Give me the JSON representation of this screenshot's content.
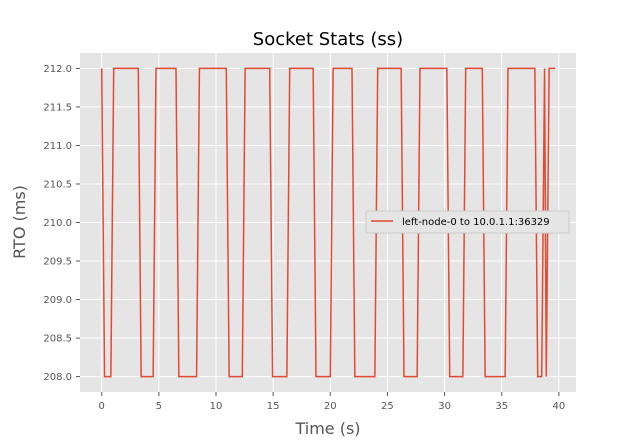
{
  "chart_data": {
    "type": "line",
    "title": "Socket Stats (ss)",
    "xlabel": "Time (s)",
    "ylabel": "RTO (ms)",
    "xlim": [
      -1.9,
      41.5
    ],
    "ylim": [
      207.8,
      212.2
    ],
    "xticks": [
      0,
      5,
      10,
      15,
      20,
      25,
      30,
      35,
      40
    ],
    "yticks": [
      208.0,
      208.5,
      209.0,
      209.5,
      210.0,
      210.5,
      211.0,
      211.5,
      212.0
    ],
    "grid": true,
    "legend_position": "center-right",
    "series": [
      {
        "name": "left-node-0 to 10.0.1.1:36329",
        "color": "#e24a33",
        "x": [
          0.0,
          0.25,
          0.8,
          1.05,
          3.2,
          3.45,
          4.5,
          4.75,
          6.5,
          6.75,
          8.3,
          8.55,
          10.9,
          11.15,
          12.3,
          12.55,
          14.7,
          14.95,
          16.2,
          16.45,
          18.5,
          18.75,
          20.0,
          20.25,
          21.9,
          22.15,
          23.9,
          24.15,
          26.2,
          26.45,
          27.6,
          27.85,
          30.2,
          30.45,
          31.6,
          31.85,
          33.3,
          33.55,
          35.3,
          35.55,
          37.9,
          38.15,
          38.5,
          38.75,
          38.9,
          39.15,
          39.7
        ],
        "y": [
          212.0,
          208.0,
          208.0,
          212.0,
          212.0,
          208.0,
          208.0,
          212.0,
          212.0,
          208.0,
          208.0,
          212.0,
          212.0,
          208.0,
          208.0,
          212.0,
          212.0,
          208.0,
          208.0,
          212.0,
          212.0,
          208.0,
          208.0,
          212.0,
          212.0,
          208.0,
          208.0,
          212.0,
          212.0,
          208.0,
          208.0,
          212.0,
          212.0,
          208.0,
          208.0,
          212.0,
          212.0,
          208.0,
          208.0,
          212.0,
          212.0,
          208.0,
          208.0,
          212.0,
          208.0,
          212.0,
          212.0
        ]
      }
    ]
  }
}
